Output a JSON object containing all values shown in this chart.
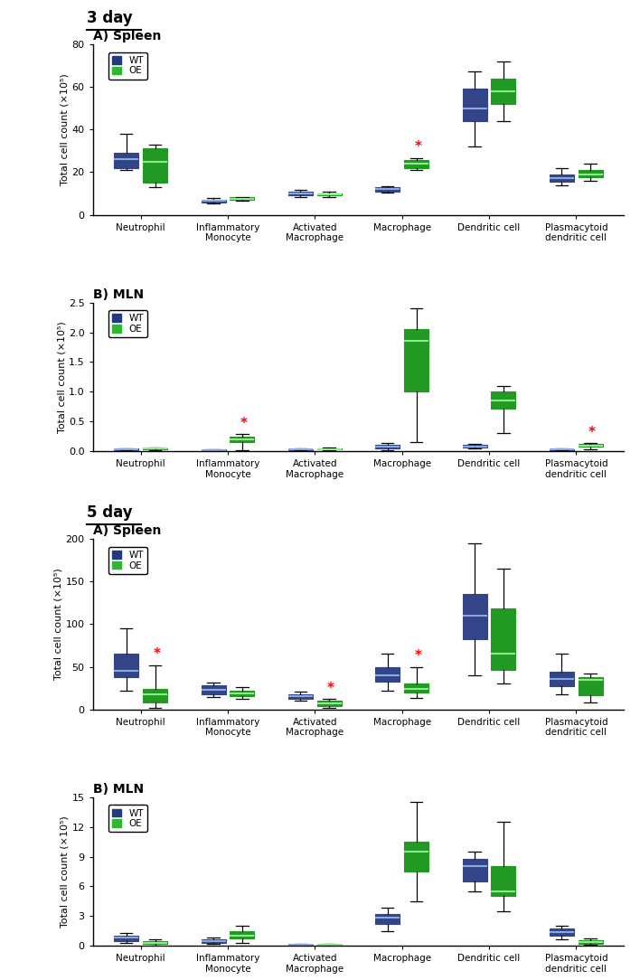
{
  "wt_color": "#253a7e",
  "oe_color": "#2db830",
  "categories": [
    "Neutrophil",
    "Inflammatory\nMonocyte",
    "Activated\nMacrophage",
    "Macrophage",
    "Dendritic cell",
    "Plasmacytoid\ndendritic cell"
  ],
  "day3_spleen": {
    "title": "A) Spleen",
    "section": "3 day",
    "ylabel": "Total cell count (×10⁵)",
    "ylim": [
      0,
      80
    ],
    "yticks": [
      0,
      20,
      40,
      60,
      80
    ],
    "wt": [
      {
        "med": 26,
        "q1": 22,
        "q3": 29,
        "whislo": 21,
        "whishi": 38
      },
      {
        "med": 6.5,
        "q1": 5.8,
        "q3": 7.2,
        "whislo": 5.5,
        "whishi": 7.8
      },
      {
        "med": 10,
        "q1": 9.2,
        "q3": 11,
        "whislo": 8.5,
        "whishi": 11.5
      },
      {
        "med": 12,
        "q1": 11,
        "q3": 13,
        "whislo": 10.5,
        "whishi": 13.5
      },
      {
        "med": 50,
        "q1": 44,
        "q3": 59,
        "whislo": 32,
        "whishi": 67
      },
      {
        "med": 17,
        "q1": 15.5,
        "q3": 19,
        "whislo": 14,
        "whishi": 22
      }
    ],
    "oe": [
      {
        "med": 25,
        "q1": 15,
        "q3": 31,
        "whislo": 13,
        "whishi": 33
      },
      {
        "med": 7.5,
        "q1": 7.0,
        "q3": 8.2,
        "whislo": 6.8,
        "whishi": 8.5
      },
      {
        "med": 9.5,
        "q1": 9.0,
        "q3": 10.2,
        "whislo": 8.5,
        "whishi": 10.8
      },
      {
        "med": 24,
        "q1": 22,
        "q3": 25.5,
        "whislo": 21,
        "whishi": 26.5
      },
      {
        "med": 58,
        "q1": 52,
        "q3": 64,
        "whislo": 44,
        "whishi": 72
      },
      {
        "med": 19,
        "q1": 17.5,
        "q3": 21,
        "whislo": 16,
        "whishi": 24
      }
    ],
    "stars": [
      null,
      null,
      null,
      "oe",
      null,
      null
    ]
  },
  "day3_mln": {
    "title": "B) MLN",
    "section": null,
    "ylabel": "Total cell count (×10⁵)",
    "ylim": [
      0,
      2.5
    ],
    "yticks": [
      0.0,
      0.5,
      1.0,
      1.5,
      2.0,
      2.5
    ],
    "wt": [
      {
        "med": 0.03,
        "q1": 0.02,
        "q3": 0.04,
        "whislo": 0.01,
        "whishi": 0.05
      },
      {
        "med": 0.015,
        "q1": 0.01,
        "q3": 0.022,
        "whislo": 0.005,
        "whishi": 0.03
      },
      {
        "med": 0.025,
        "q1": 0.018,
        "q3": 0.035,
        "whislo": 0.01,
        "whishi": 0.04
      },
      {
        "med": 0.07,
        "q1": 0.04,
        "q3": 0.1,
        "whislo": 0.02,
        "whishi": 0.14
      },
      {
        "med": 0.08,
        "q1": 0.06,
        "q3": 0.1,
        "whislo": 0.05,
        "whishi": 0.12
      },
      {
        "med": 0.025,
        "q1": 0.018,
        "q3": 0.035,
        "whislo": 0.01,
        "whishi": 0.05
      }
    ],
    "oe": [
      {
        "med": 0.04,
        "q1": 0.03,
        "q3": 0.05,
        "whislo": 0.02,
        "whishi": 0.06
      },
      {
        "med": 0.2,
        "q1": 0.15,
        "q3": 0.24,
        "whislo": 0.02,
        "whishi": 0.28
      },
      {
        "med": 0.035,
        "q1": 0.025,
        "q3": 0.045,
        "whislo": 0.015,
        "whishi": 0.055
      },
      {
        "med": 1.85,
        "q1": 1.0,
        "q3": 2.05,
        "whislo": 0.15,
        "whishi": 2.4
      },
      {
        "med": 0.85,
        "q1": 0.72,
        "q3": 1.0,
        "whislo": 0.3,
        "whishi": 1.1
      },
      {
        "med": 0.09,
        "q1": 0.07,
        "q3": 0.12,
        "whislo": 0.03,
        "whishi": 0.14
      }
    ],
    "stars": [
      null,
      "oe",
      null,
      null,
      null,
      "oe"
    ]
  },
  "day5_spleen": {
    "title": "A) Spleen",
    "section": "5 day",
    "ylabel": "Total cell count (×10⁵)",
    "ylim": [
      0,
      200
    ],
    "yticks": [
      0,
      50,
      100,
      150,
      200
    ],
    "wt": [
      {
        "med": 45,
        "q1": 38,
        "q3": 65,
        "whislo": 22,
        "whishi": 95
      },
      {
        "med": 23,
        "q1": 18,
        "q3": 28,
        "whislo": 15,
        "whishi": 32
      },
      {
        "med": 16,
        "q1": 12,
        "q3": 18,
        "whislo": 10,
        "whishi": 21
      },
      {
        "med": 40,
        "q1": 33,
        "q3": 50,
        "whislo": 22,
        "whishi": 65
      },
      {
        "med": 110,
        "q1": 82,
        "q3": 135,
        "whislo": 40,
        "whishi": 195
      },
      {
        "med": 36,
        "q1": 27,
        "q3": 44,
        "whislo": 18,
        "whishi": 65
      }
    ],
    "oe": [
      {
        "med": 18,
        "q1": 8,
        "q3": 24,
        "whislo": 2,
        "whishi": 52
      },
      {
        "med": 19,
        "q1": 16,
        "q3": 22,
        "whislo": 13,
        "whishi": 26
      },
      {
        "med": 7,
        "q1": 4,
        "q3": 10,
        "whislo": 2,
        "whishi": 12
      },
      {
        "med": 24,
        "q1": 20,
        "q3": 30,
        "whislo": 14,
        "whishi": 50
      },
      {
        "med": 65,
        "q1": 46,
        "q3": 118,
        "whislo": 30,
        "whishi": 165
      },
      {
        "med": 35,
        "q1": 17,
        "q3": 38,
        "whislo": 8,
        "whishi": 42
      }
    ],
    "stars": [
      "oe",
      null,
      "oe",
      "oe",
      null,
      null
    ]
  },
  "day5_mln": {
    "title": "B) MLN",
    "section": null,
    "ylabel": "Total cell count (×10⁵)",
    "ylim": [
      0,
      15
    ],
    "yticks": [
      0,
      3,
      6,
      9,
      12,
      15
    ],
    "wt": [
      {
        "med": 0.8,
        "q1": 0.5,
        "q3": 1.0,
        "whislo": 0.3,
        "whishi": 1.3
      },
      {
        "med": 0.45,
        "q1": 0.3,
        "q3": 0.62,
        "whislo": 0.15,
        "whishi": 0.82
      },
      {
        "med": 0.08,
        "q1": 0.04,
        "q3": 0.12,
        "whislo": 0.02,
        "whishi": 0.16
      },
      {
        "med": 2.8,
        "q1": 2.2,
        "q3": 3.2,
        "whislo": 1.5,
        "whishi": 3.8
      },
      {
        "med": 8.0,
        "q1": 6.5,
        "q3": 8.8,
        "whislo": 5.5,
        "whishi": 9.5
      },
      {
        "med": 1.4,
        "q1": 1.0,
        "q3": 1.7,
        "whislo": 0.6,
        "whishi": 2.0
      }
    ],
    "oe": [
      {
        "med": 0.3,
        "q1": 0.15,
        "q3": 0.45,
        "whislo": 0.05,
        "whishi": 0.65
      },
      {
        "med": 1.0,
        "q1": 0.7,
        "q3": 1.5,
        "whislo": 0.3,
        "whishi": 2.0
      },
      {
        "med": 0.08,
        "q1": 0.04,
        "q3": 0.12,
        "whislo": 0.02,
        "whishi": 0.16
      },
      {
        "med": 9.5,
        "q1": 7.5,
        "q3": 10.5,
        "whislo": 4.5,
        "whishi": 14.5
      },
      {
        "med": 5.5,
        "q1": 5.0,
        "q3": 8.0,
        "whislo": 3.5,
        "whishi": 12.5
      },
      {
        "med": 0.4,
        "q1": 0.2,
        "q3": 0.55,
        "whislo": 0.1,
        "whishi": 0.7
      }
    ],
    "stars": [
      null,
      null,
      null,
      null,
      null,
      null
    ]
  }
}
